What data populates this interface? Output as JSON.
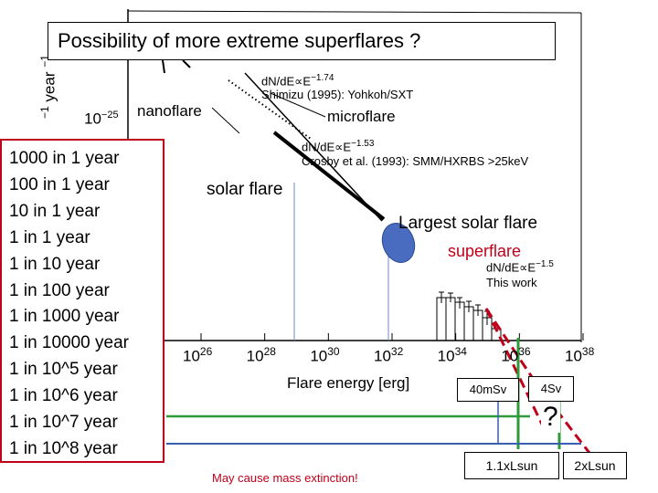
{
  "title": "Possibility of  more extreme superflares ?",
  "frequency_list": [
    "1000 in 1 year",
    "100 in 1 year",
    "10 in 1 year",
    "1 in 1 year",
    "1 in 10 year",
    "1 in 100 year",
    "1 in 1000 year",
    "1 in 10000 year",
    "1 in 10^5 year",
    "1 in 10^6 year",
    "1 in 10^7 year",
    "1 in 10^8 year"
  ],
  "labels": {
    "nanoflare": "nanoflare",
    "microflare": "microflare",
    "solar_flare": "solar flare",
    "largest_solar_flare": "Largest solar flare",
    "superflare": "superflare",
    "fit_shimizu_law": "dN/dE∝E",
    "fit_shimizu_exp": "−1.74",
    "fit_shimizu_ref": "Shimizu (1995): Yohkoh/SXT",
    "fit_crosby_law": "dN/dE∝E",
    "fit_crosby_exp": "−1.53",
    "fit_crosby_ref": "Crosby et al. (1993): SMM/HXRBS >25keV",
    "fit_thiswork_law": "dN/dE∝E",
    "fit_thiswork_exp": "−1.5",
    "fit_thiswork_ref": "This work",
    "question_mark": "?",
    "sv_40": "40mSv",
    "sv_4": "4Sv",
    "lsun_1": "1.1xLsun",
    "lsun_2": "2xLsun",
    "mass_extinction": "May cause mass extinction!",
    "ylabel_partial": "year",
    "ylabel_exp": "−1",
    "ylabel_exp2": "−1"
  },
  "chart_data": {
    "type": "scatter",
    "title": "",
    "xlabel": "Flare energy [erg]",
    "ylabel": "",
    "x_scale": "log",
    "xlim": [
      1e+25,
      1e+38
    ],
    "x_ticks": [
      "10^26",
      "10^28",
      "10^30",
      "10^32",
      "10^34",
      "10^36",
      "10^38"
    ],
    "x_tick_exponents": [
      26,
      28,
      30,
      32,
      34,
      36,
      38
    ],
    "y_tick_visible": "10^-25",
    "colors": {
      "highlight_red": "#c0001a",
      "green": "#2e9a3a",
      "blue_line": "#3a5fb0",
      "ellipse_fill": "#4a6cc0"
    }
  }
}
